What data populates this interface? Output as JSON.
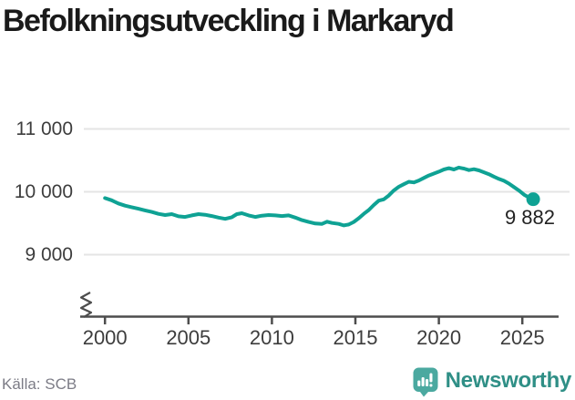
{
  "header": {
    "title": "Befolkningsutveckling i Markaryd"
  },
  "footer": {
    "source": "Källa: SCB",
    "branding": "Newsworthy"
  },
  "colors": {
    "line": "#0FA294",
    "grid": "#E4E4E4",
    "axis": "#4D4D4D",
    "tick_label": "#3D3D3D",
    "title": "#1A1A1A",
    "source_text": "#7C7C86",
    "logo_icon": "#4BA9A0",
    "logo_text": "#2F8F86"
  },
  "chart_data": {
    "type": "line",
    "title": "Befolkningsutveckling i Markaryd",
    "xlabel": "",
    "ylabel": "",
    "grid": "horizontal",
    "legend": "none",
    "axis_break": true,
    "xlim": [
      1999.5,
      2027.2
    ],
    "ylim": [
      8850,
      11100
    ],
    "x_ticks": [
      {
        "value": 2000,
        "label": "2000"
      },
      {
        "value": 2005,
        "label": "2005"
      },
      {
        "value": 2010,
        "label": "2010"
      },
      {
        "value": 2015,
        "label": "2015"
      },
      {
        "value": 2020,
        "label": "2020"
      },
      {
        "value": 2025,
        "label": "2025"
      }
    ],
    "y_ticks": [
      {
        "value": 9000,
        "label": "9 000"
      },
      {
        "value": 10000,
        "label": "10 000"
      },
      {
        "value": 11000,
        "label": "11 000"
      }
    ],
    "end_label": "9 882",
    "end_point": {
      "x": 2025.65,
      "y": 9882
    },
    "series": [
      {
        "name": "Befolkning i Markaryd",
        "points": [
          [
            2000.0,
            9900
          ],
          [
            2000.4,
            9865
          ],
          [
            2000.8,
            9815
          ],
          [
            2001.2,
            9780
          ],
          [
            2001.6,
            9755
          ],
          [
            2002.0,
            9730
          ],
          [
            2002.4,
            9705
          ],
          [
            2002.8,
            9680
          ],
          [
            2003.2,
            9650
          ],
          [
            2003.6,
            9630
          ],
          [
            2004.0,
            9645
          ],
          [
            2004.4,
            9610
          ],
          [
            2004.8,
            9600
          ],
          [
            2005.2,
            9625
          ],
          [
            2005.6,
            9645
          ],
          [
            2006.0,
            9635
          ],
          [
            2006.4,
            9615
          ],
          [
            2006.8,
            9590
          ],
          [
            2007.2,
            9570
          ],
          [
            2007.6,
            9595
          ],
          [
            2007.9,
            9645
          ],
          [
            2008.2,
            9660
          ],
          [
            2008.6,
            9625
          ],
          [
            2009.0,
            9600
          ],
          [
            2009.4,
            9620
          ],
          [
            2009.8,
            9630
          ],
          [
            2010.2,
            9625
          ],
          [
            2010.6,
            9615
          ],
          [
            2011.0,
            9625
          ],
          [
            2011.4,
            9590
          ],
          [
            2011.8,
            9550
          ],
          [
            2012.2,
            9520
          ],
          [
            2012.6,
            9495
          ],
          [
            2013.0,
            9490
          ],
          [
            2013.3,
            9525
          ],
          [
            2013.6,
            9505
          ],
          [
            2014.0,
            9490
          ],
          [
            2014.3,
            9465
          ],
          [
            2014.6,
            9480
          ],
          [
            2014.9,
            9520
          ],
          [
            2015.2,
            9580
          ],
          [
            2015.5,
            9650
          ],
          [
            2015.8,
            9710
          ],
          [
            2016.1,
            9790
          ],
          [
            2016.4,
            9860
          ],
          [
            2016.7,
            9880
          ],
          [
            2017.0,
            9940
          ],
          [
            2017.3,
            10020
          ],
          [
            2017.6,
            10080
          ],
          [
            2017.9,
            10120
          ],
          [
            2018.2,
            10160
          ],
          [
            2018.5,
            10150
          ],
          [
            2018.8,
            10180
          ],
          [
            2019.1,
            10220
          ],
          [
            2019.4,
            10260
          ],
          [
            2019.7,
            10290
          ],
          [
            2020.0,
            10320
          ],
          [
            2020.3,
            10355
          ],
          [
            2020.6,
            10375
          ],
          [
            2020.9,
            10355
          ],
          [
            2021.2,
            10385
          ],
          [
            2021.5,
            10370
          ],
          [
            2021.8,
            10345
          ],
          [
            2022.1,
            10360
          ],
          [
            2022.4,
            10340
          ],
          [
            2022.7,
            10310
          ],
          [
            2023.0,
            10280
          ],
          [
            2023.3,
            10240
          ],
          [
            2023.6,
            10205
          ],
          [
            2023.9,
            10175
          ],
          [
            2024.2,
            10130
          ],
          [
            2024.5,
            10075
          ],
          [
            2024.8,
            10020
          ],
          [
            2025.1,
            9955
          ],
          [
            2025.4,
            9910
          ],
          [
            2025.65,
            9882
          ]
        ]
      }
    ]
  }
}
